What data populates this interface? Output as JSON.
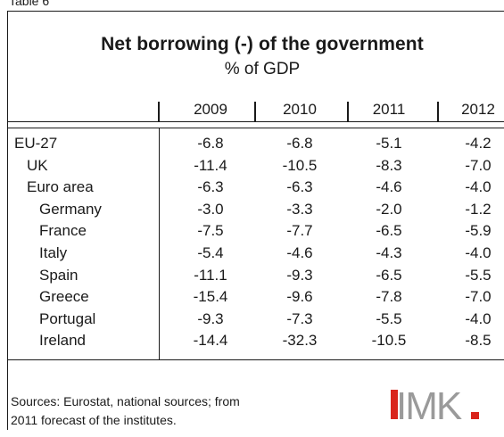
{
  "table_label": "Table 6",
  "title": "Net borrowing (-) of the government",
  "subtitle": "% of GDP",
  "years": [
    "2009",
    "2010",
    "2011",
    "2012"
  ],
  "rows": [
    {
      "label": "EU-27",
      "indent": 0,
      "values": [
        "-6.8",
        "-6.8",
        "-5.1",
        "-4.2"
      ]
    },
    {
      "label": "UK",
      "indent": 1,
      "values": [
        "-11.4",
        "-10.5",
        "-8.3",
        "-7.0"
      ]
    },
    {
      "label": "Euro area",
      "indent": 1,
      "values": [
        "-6.3",
        "-6.3",
        "-4.6",
        "-4.0"
      ]
    },
    {
      "label": "Germany",
      "indent": 2,
      "values": [
        "-3.0",
        "-3.3",
        "-2.0",
        "-1.2"
      ]
    },
    {
      "label": "France",
      "indent": 2,
      "values": [
        "-7.5",
        "-7.7",
        "-6.5",
        "-5.9"
      ]
    },
    {
      "label": "Italy",
      "indent": 2,
      "values": [
        "-5.4",
        "-4.6",
        "-4.3",
        "-4.0"
      ]
    },
    {
      "label": "Spain",
      "indent": 2,
      "values": [
        "-11.1",
        "-9.3",
        "-6.5",
        "-5.5"
      ]
    },
    {
      "label": "Greece",
      "indent": 2,
      "values": [
        "-15.4",
        "-9.6",
        "-7.8",
        "-7.0"
      ]
    },
    {
      "label": "Portugal",
      "indent": 2,
      "values": [
        "-9.3",
        "-7.3",
        "-5.5",
        "-4.0"
      ]
    },
    {
      "label": "Ireland",
      "indent": 2,
      "values": [
        "-14.4",
        "-32.3",
        "-10.5",
        "-8.5"
      ]
    }
  ],
  "source_line1": "Sources: Eurostat, national sources; from",
  "source_line2": "2011 forecast of the institutes.",
  "logo": {
    "text": "IMK",
    "accent_color": "#d9251c",
    "text_color": "#9a9a9a"
  }
}
